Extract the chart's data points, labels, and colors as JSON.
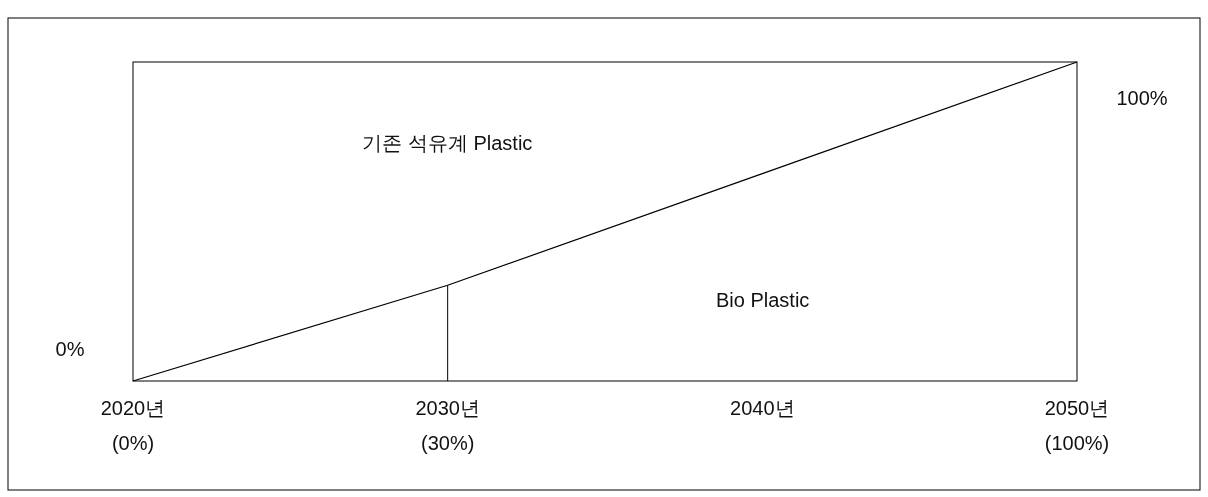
{
  "chart_data": {
    "type": "line",
    "categories": [
      "2020년",
      "2030년",
      "2040년",
      "2050년"
    ],
    "values": [
      0,
      30,
      65,
      100
    ],
    "color": "#000000",
    "value_labels": [
      "(0%)",
      "(30%)",
      null,
      "(100%)"
    ],
    "ylim": [
      0,
      100
    ],
    "ref_lines": [
      {
        "axis": "x",
        "value": "2030년",
        "color": "#000000"
      }
    ],
    "annotations": [
      "기존 석유계 Plastic",
      "Bio Plastic",
      {
        "text": "0%",
        "x": "2020년",
        "y": 0
      },
      {
        "text": "100%",
        "x": "2050년",
        "y": 100
      }
    ]
  }
}
